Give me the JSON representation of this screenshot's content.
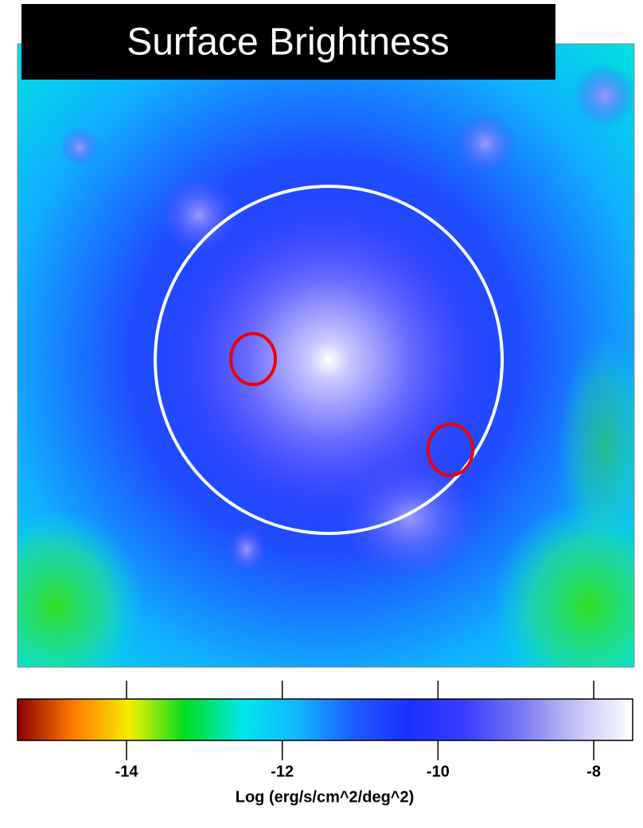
{
  "chart_data": {
    "type": "colormap",
    "title": "Surface Brightness",
    "colorbar": {
      "label": "Log (erg/s/cm^2/deg^2)",
      "clim": [
        -15.4,
        -7.5
      ],
      "ticks": [
        -14,
        -12,
        -10,
        -8
      ],
      "colormap": [
        "#8b0000",
        "#ff7a00",
        "#f5ee00",
        "#00dd20",
        "#00e8e8",
        "#10b8ff",
        "#1f5cff",
        "#1a30ff",
        "#3a3cff",
        "#7878f2",
        "#c4c4f6",
        "#ffffff"
      ]
    }
  }
}
